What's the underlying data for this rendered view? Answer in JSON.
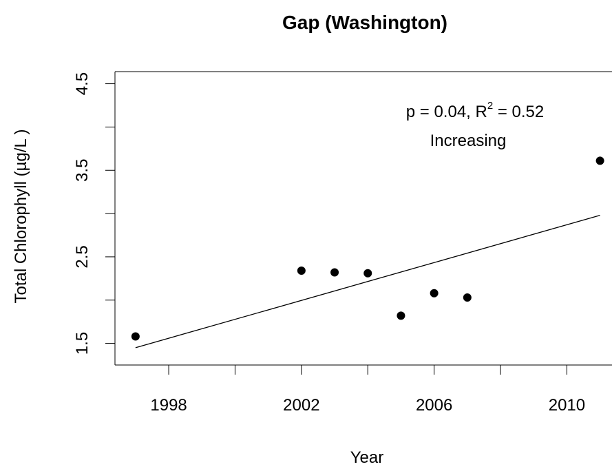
{
  "chart_data": {
    "type": "scatter",
    "title": "Gap (Washington)",
    "xlabel": "Year",
    "ylabel": "Total Chlorophyll (µg/L )",
    "series": [
      {
        "type": "scatter",
        "color": "#000000",
        "x": [
          1997,
          2002,
          2003,
          2004,
          2005,
          2006,
          2007,
          2011
        ],
        "values": [
          1.58,
          2.34,
          2.32,
          2.31,
          1.82,
          2.08,
          2.03,
          3.61
        ]
      },
      {
        "type": "line",
        "color": "#000000",
        "x": [
          1997,
          2011
        ],
        "values": [
          1.45,
          2.98
        ]
      }
    ],
    "xlim": [
      1996.38,
      2011.56
    ],
    "xticks": [
      1998,
      2002,
      2006,
      2010
    ],
    "xminor_ticks": [
      2000,
      2004,
      2008
    ],
    "ylim": [
      1.25,
      4.64
    ],
    "yticks": [
      1.5,
      2.5,
      3.5,
      4.5
    ],
    "yminor_ticks": [
      2,
      3,
      4
    ],
    "annotation_line1": [
      "p = 0.04, R",
      "2",
      " = 0.52"
    ],
    "annotation_line2": "Increasing"
  }
}
